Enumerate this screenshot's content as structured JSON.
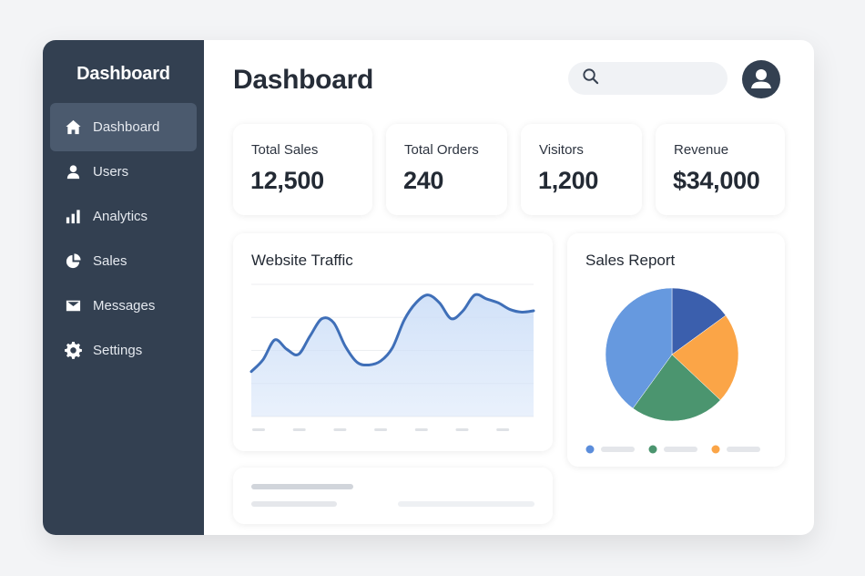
{
  "sidebar": {
    "title": "Dashboard",
    "items": [
      {
        "label": "Dashboard",
        "icon": "home-icon",
        "active": true
      },
      {
        "label": "Users",
        "icon": "user-icon",
        "active": false
      },
      {
        "label": "Analytics",
        "icon": "bar-chart-icon",
        "active": false
      },
      {
        "label": "Sales",
        "icon": "pie-chart-icon",
        "active": false
      },
      {
        "label": "Messages",
        "icon": "envelope-icon",
        "active": false
      },
      {
        "label": "Settings",
        "icon": "gear-icon",
        "active": false
      }
    ]
  },
  "header": {
    "title": "Dashboard",
    "search": {
      "value": "",
      "placeholder": "",
      "icon": "search-icon"
    },
    "avatar_icon": "user-avatar-icon"
  },
  "stats": [
    {
      "label": "Total Sales",
      "value": "12,500"
    },
    {
      "label": "Total Orders",
      "value": "240"
    },
    {
      "label": "Visitors",
      "value": "1,200"
    },
    {
      "label": "Revenue",
      "value": "$34,000"
    }
  ],
  "colors": {
    "sidebar_bg": "#334051",
    "sidebar_active": "#4b5a6e",
    "line": "#3f6fb8",
    "area_fill": "#cfe0f8",
    "pie_blue_dark": "#3b5fad",
    "pie_orange": "#fba547",
    "pie_green": "#4b956f",
    "pie_blue_light": "#6699df"
  },
  "chart_data": [
    {
      "type": "area",
      "title": "Website Traffic",
      "x": [
        0,
        1,
        2,
        3,
        4,
        5,
        6,
        7,
        8,
        9,
        10,
        11,
        12,
        13,
        14,
        15,
        16,
        17,
        18,
        19,
        20,
        21,
        22,
        23,
        24
      ],
      "values": [
        34,
        43,
        58,
        51,
        47,
        61,
        74,
        71,
        53,
        41,
        39,
        42,
        52,
        73,
        86,
        92,
        86,
        74,
        80,
        92,
        89,
        86,
        81,
        79,
        80
      ],
      "ylim": [
        0,
        100
      ],
      "grid": true,
      "xticks_shown_as_placeholders": 7,
      "color": "#3f6fb8"
    },
    {
      "type": "pie",
      "title": "Sales Report",
      "values": [
        15,
        22,
        23,
        40
      ],
      "colors": [
        "#3b5fad",
        "#fba547",
        "#4b956f",
        "#6699df"
      ],
      "legend_position": "bottom",
      "legend_swatches": [
        "#5b8ddb",
        "#4b956f",
        "#fba547"
      ]
    }
  ]
}
